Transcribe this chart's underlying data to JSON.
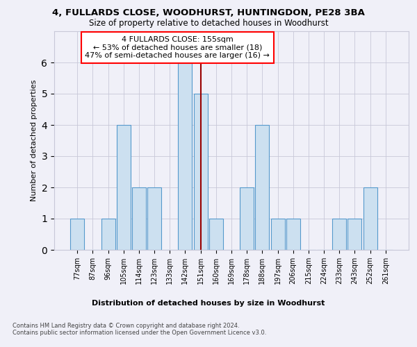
{
  "title1": "4, FULLARDS CLOSE, WOODHURST, HUNTINGDON, PE28 3BA",
  "title2": "Size of property relative to detached houses in Woodhurst",
  "xlabel": "Distribution of detached houses by size in Woodhurst",
  "ylabel": "Number of detached properties",
  "categories": [
    "77sqm",
    "87sqm",
    "96sqm",
    "105sqm",
    "114sqm",
    "123sqm",
    "133sqm",
    "142sqm",
    "151sqm",
    "160sqm",
    "169sqm",
    "178sqm",
    "188sqm",
    "197sqm",
    "206sqm",
    "215sqm",
    "224sqm",
    "233sqm",
    "243sqm",
    "252sqm",
    "261sqm"
  ],
  "values": [
    1,
    0,
    1,
    4,
    2,
    2,
    0,
    6,
    5,
    1,
    0,
    2,
    4,
    1,
    1,
    0,
    0,
    1,
    1,
    2,
    0
  ],
  "bar_color": "#cce0f0",
  "bar_edge_color": "#5599cc",
  "vline_x": 8.5,
  "vline_color": "#990000",
  "annotation_text": "4 FULLARDS CLOSE: 155sqm\n← 53% of detached houses are smaller (18)\n47% of semi-detached houses are larger (16) →",
  "annotation_box_color": "white",
  "annotation_box_edge": "red",
  "ylim": [
    0,
    7
  ],
  "yticks": [
    0,
    1,
    2,
    3,
    4,
    5,
    6,
    7
  ],
  "footer1": "Contains HM Land Registry data © Crown copyright and database right 2024.",
  "footer2": "Contains public sector information licensed under the Open Government Licence v3.0.",
  "background_color": "#f0f0f8",
  "grid_color": "#c8c8d8"
}
